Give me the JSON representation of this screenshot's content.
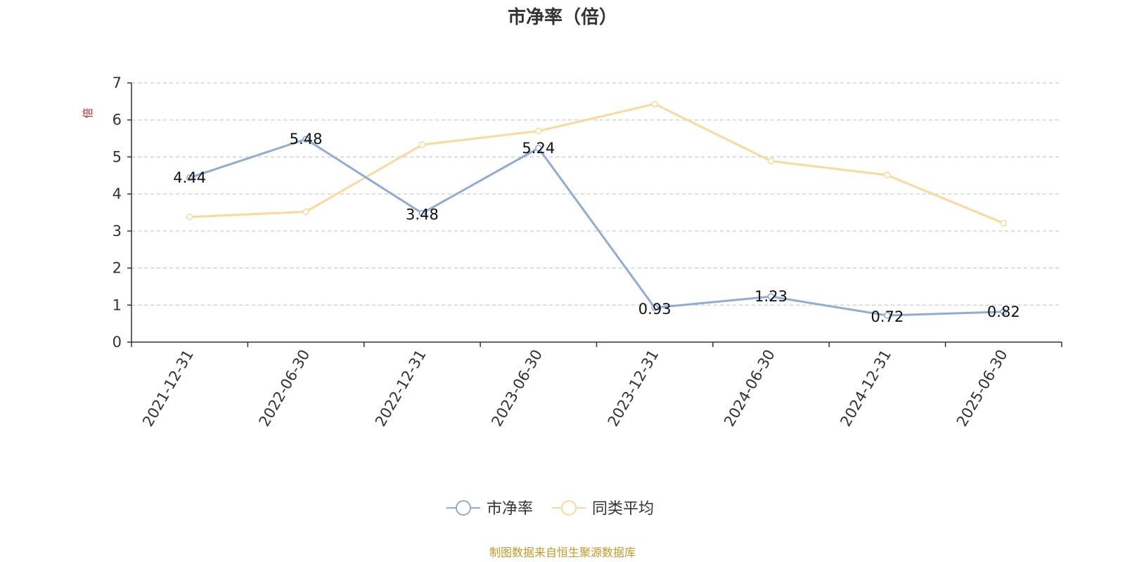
{
  "chart_data": {
    "type": "line",
    "title": "市净率（倍）",
    "ylabel": "倍",
    "xlabel": "",
    "categories": [
      "2021-12-31",
      "2022-06-30",
      "2022-12-31",
      "2023-06-30",
      "2023-12-31",
      "2024-06-30",
      "2024-12-31",
      "2025-06-30"
    ],
    "ylim": [
      0,
      7
    ],
    "yticks": [
      0,
      1,
      2,
      3,
      4,
      5,
      6,
      7
    ],
    "grid": true,
    "legend_position": "bottom-center",
    "series": [
      {
        "name": "市净率",
        "color": "#8eacd6",
        "values": [
          4.44,
          5.48,
          3.48,
          5.24,
          0.93,
          1.23,
          0.72,
          0.82
        ],
        "data_labels": [
          "4.44",
          "5.48",
          "3.48",
          "5.24",
          "0.93",
          "1.23",
          "0.72",
          "0.82"
        ]
      },
      {
        "name": "同类平均",
        "color": "#fbd99a",
        "values": [
          3.38,
          3.52,
          5.33,
          5.7,
          6.43,
          4.89,
          4.51,
          3.21
        ],
        "data_labels": []
      }
    ],
    "source": "制图数据来自恒生聚源数据库"
  }
}
